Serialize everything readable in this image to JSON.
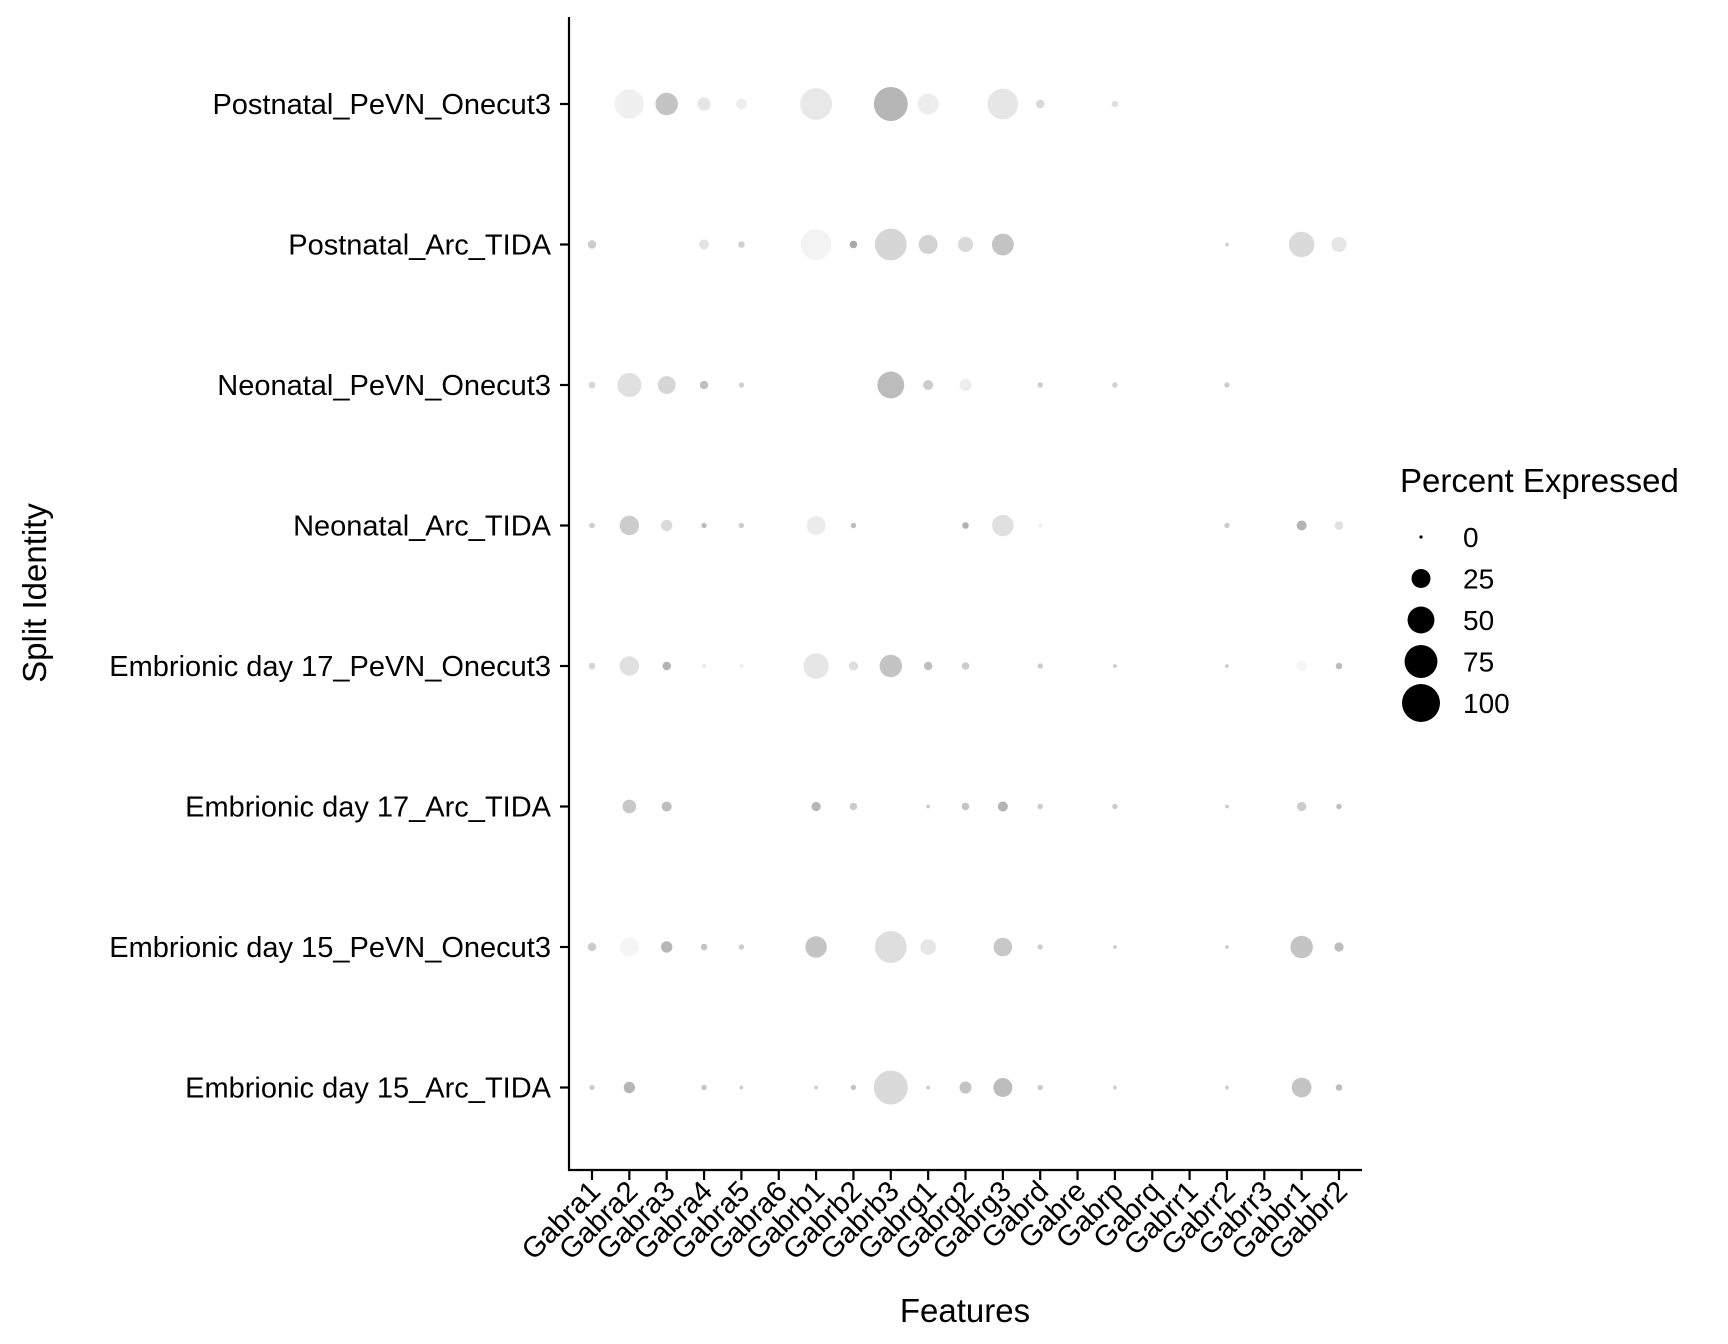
{
  "chart_data": {
    "type": "dot",
    "xlabel": "Features",
    "ylabel": "Split Identity",
    "features": [
      "Gabra1",
      "Gabra2",
      "Gabra3",
      "Gabra4",
      "Gabra5",
      "Gabra6",
      "Gabrb1",
      "Gabrb2",
      "Gabrb3",
      "Gabrg1",
      "Gabrg2",
      "Gabrg3",
      "Gabrd",
      "Gabre",
      "Gabrp",
      "Gabrq",
      "Gabrr1",
      "Gabrr2",
      "Gabrr3",
      "Gabbr1",
      "Gabbr2"
    ],
    "identities": [
      "Postnatal_PeVN_Onecut3",
      "Postnatal_Arc_TIDA",
      "Neonatal_PeVN_Onecut3",
      "Neonatal_Arc_TIDA",
      "Embrionic day 17_PeVN_Onecut3",
      "Embrionic day 17_Arc_TIDA",
      "Embrionic day 15_PeVN_Onecut3",
      "Embrionic day 15_Arc_TIDA"
    ],
    "percent_expressed": [
      [
        0,
        60,
        35,
        12,
        8,
        0,
        70,
        0,
        80,
        30,
        0,
        65,
        5,
        0,
        3,
        0,
        0,
        0,
        0,
        0,
        0
      ],
      [
        5,
        0,
        0,
        7,
        3,
        0,
        65,
        4,
        70,
        25,
        16,
        33,
        0,
        0,
        0,
        0,
        0,
        1,
        0,
        45,
        16
      ],
      [
        3,
        40,
        22,
        5,
        2,
        0,
        0,
        0,
        50,
        7,
        10,
        0,
        2,
        0,
        2,
        0,
        0,
        2,
        0,
        0,
        0
      ],
      [
        2,
        26,
        9,
        2,
        2,
        0,
        25,
        2,
        0,
        0,
        3,
        32,
        1,
        0,
        0,
        0,
        0,
        2,
        0,
        7,
        5
      ],
      [
        3,
        26,
        5,
        1,
        1,
        0,
        45,
        6,
        35,
        5,
        4,
        0,
        2,
        0,
        1,
        0,
        0,
        1,
        0,
        8,
        3
      ],
      [
        0,
        13,
        7,
        0,
        0,
        0,
        6,
        4,
        0,
        1,
        4,
        7,
        2,
        0,
        2,
        0,
        0,
        1,
        0,
        6,
        2
      ],
      [
        5,
        25,
        9,
        3,
        2,
        0,
        32,
        0,
        70,
        17,
        0,
        24,
        2,
        0,
        1,
        0,
        0,
        1,
        0,
        35,
        6
      ],
      [
        2,
        9,
        0,
        2,
        1,
        0,
        1,
        2,
        80,
        1,
        10,
        25,
        2,
        0,
        1,
        0,
        0,
        1,
        0,
        27,
        3
      ]
    ],
    "average_expression_gray": [
      [
        null,
        "#f0f0f0",
        "#c4c4c4",
        "#e6e6e6",
        "#ededed",
        null,
        "#e8e8e8",
        null,
        "#b6b6b6",
        "#ececec",
        null,
        "#e6e6e6",
        "#d8d8d8",
        null,
        "#dedede",
        null,
        null,
        null,
        null,
        null,
        null
      ],
      [
        "#cccccc",
        null,
        null,
        "#e4e4e4",
        "#cfcfcf",
        null,
        "#f3f3f3",
        "#aaaaaa",
        "#d6d6d6",
        "#d2d2d2",
        "#dadada",
        "#c4c4c4",
        null,
        null,
        null,
        null,
        null,
        "#d0d0d0",
        null,
        "#dadada",
        "#e6e6e6"
      ],
      [
        "#d6d6d6",
        "#e0e0e0",
        "#d6d6d6",
        "#c0c0c0",
        "#cfcfcf",
        null,
        null,
        null,
        "#bcbcbc",
        "#cccccc",
        "#ededed",
        null,
        "#cccccc",
        null,
        "#d0d0d0",
        null,
        null,
        "#cccccc",
        null,
        null,
        null
      ],
      [
        "#cccccc",
        "#cccccc",
        "#dadada",
        "#bdbdbd",
        "#cccccc",
        null,
        "#ececec",
        "#bdbdbd",
        null,
        null,
        "#b0b0b0",
        "#e0e0e0",
        "#ededed",
        null,
        null,
        null,
        null,
        "#cccccc",
        null,
        "#b3b3b3",
        "#e0e0e0"
      ],
      [
        "#d6d6d6",
        "#e0e0e0",
        "#b3b3b3",
        "#e6e6e6",
        "#ececec",
        null,
        "#e6e6e6",
        "#dedede",
        "#c4c4c4",
        "#c0c0c0",
        "#cccccc",
        null,
        "#cccccc",
        null,
        "#cccccc",
        null,
        null,
        "#cccccc",
        null,
        "#f5f5f5",
        "#bdbdbd"
      ],
      [
        null,
        "#c8c8c8",
        "#bdbdbd",
        null,
        null,
        null,
        "#b6b6b6",
        "#cccccc",
        null,
        "#cccccc",
        "#c4c4c4",
        "#b3b3b3",
        "#cccccc",
        null,
        "#cccccc",
        null,
        null,
        "#cccccc",
        null,
        "#cccccc",
        "#bdbdbd"
      ],
      [
        "#cccccc",
        "#f5f5f5",
        "#b6b6b6",
        "#c4c4c4",
        "#cccccc",
        null,
        "#c4c4c4",
        null,
        "#dedede",
        "#e6e6e6",
        null,
        "#c8c8c8",
        "#cccccc",
        null,
        "#cccccc",
        null,
        null,
        "#cccccc",
        null,
        "#c4c4c4",
        "#bdbdbd"
      ],
      [
        "#cccccc",
        "#b6b6b6",
        null,
        "#c4c4c4",
        "#cccccc",
        null,
        "#cccccc",
        "#c4c4c4",
        "#dadada",
        "#cccccc",
        "#c4c4c4",
        "#bdbdbd",
        "#cccccc",
        null,
        "#cccccc",
        null,
        null,
        "#cccccc",
        null,
        "#c4c4c4",
        "#bdbdbd"
      ]
    ],
    "legend": {
      "title": "Percent Expressed",
      "placement": "right",
      "values": [
        0,
        25,
        50,
        75,
        100
      ],
      "labels": [
        "0",
        "25",
        "50",
        "75",
        "100"
      ],
      "color": "#000000"
    },
    "grid": false
  }
}
